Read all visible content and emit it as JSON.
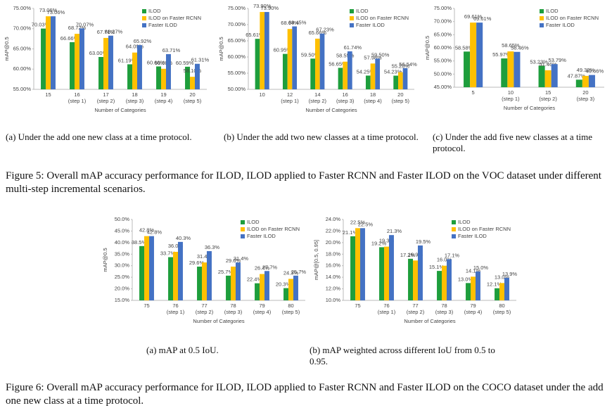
{
  "chart_data": [
    {
      "type": "bar",
      "y_label": "mAP@0.5",
      "x_label": "Number of Categories",
      "legend": "upper right",
      "categories": [
        [
          "15"
        ],
        [
          "16",
          "(step 1)"
        ],
        [
          "17",
          "(step 2)"
        ],
        [
          "18",
          "(step 3)"
        ],
        [
          "19",
          "(step 4)"
        ],
        [
          "20",
          "(step 5)"
        ]
      ],
      "ylim": [
        55,
        75
      ],
      "yticks": [
        {
          "value": 55,
          "label": "55.00%"
        },
        {
          "value": 60,
          "label": "60.00%"
        },
        {
          "value": 65,
          "label": "65.00%"
        },
        {
          "value": 70,
          "label": "70.00%"
        },
        {
          "value": 75,
          "label": "75.00%"
        }
      ],
      "series": [
        {
          "name": "ILOD",
          "color": "#1e9e3c",
          "values": [
            70.03,
            66.66,
            63.0,
            61.19,
            60.66,
            60.59
          ],
          "value_labels": [
            "70.03%",
            "66.66%",
            "63.00%",
            "61.19%",
            "60.66%",
            "60.59%"
          ]
        },
        {
          "name": "ILOD on Faster RCNN",
          "color": "#ffc000",
          "values": [
            73.06,
            68.72,
            67.71,
            64.09,
            60.08,
            58.1
          ],
          "value_labels": [
            "73.06%",
            "68.72%",
            "67.71%",
            "64.09%",
            "60.08%",
            "58.10%"
          ]
        },
        {
          "name": "Faster ILOD",
          "color": "#4472c4",
          "values": [
            73.06,
            70.07,
            68.27,
            65.92,
            63.71,
            61.31
          ],
          "value_labels": [
            "73.06%",
            "70.07%",
            "68.27%",
            "65.92%",
            "63.71%",
            "61.31%"
          ]
        }
      ],
      "caption": "(a) Under the add one new class at a time protocol."
    },
    {
      "type": "bar",
      "y_label": "mAP@0.5",
      "x_label": "Number of Categories",
      "legend": "upper right",
      "categories": [
        [
          "10"
        ],
        [
          "12",
          "(step 1)"
        ],
        [
          "14",
          "(step 2)"
        ],
        [
          "16",
          "(step 3)"
        ],
        [
          "18",
          "(step 4)"
        ],
        [
          "20",
          "(step 5)"
        ]
      ],
      "ylim": [
        50,
        75
      ],
      "yticks": [
        {
          "value": 50,
          "label": "50.00%"
        },
        {
          "value": 55,
          "label": "55.00%"
        },
        {
          "value": 60,
          "label": "60.00%"
        },
        {
          "value": 65,
          "label": "65.00%"
        },
        {
          "value": 70,
          "label": "70.00%"
        },
        {
          "value": 75,
          "label": "75.00%"
        }
      ],
      "series": [
        {
          "name": "ILOD",
          "color": "#1e9e3c",
          "values": [
            65.61,
            60.95,
            59.5,
            56.65,
            54.25,
            54.23
          ],
          "value_labels": [
            "65.61%",
            "60.95%",
            "59.50%",
            "56.65%",
            "54.25%",
            "54.23%"
          ]
        },
        {
          "name": "ILOD on Faster RCNN",
          "color": "#ffc000",
          "values": [
            73.9,
            68.64,
            65.66,
            58.55,
            57.98,
            55.28
          ],
          "value_labels": [
            "73.90%",
            "68.64%",
            "65.66%",
            "58.55%",
            "57.98%",
            "55.28%"
          ]
        },
        {
          "name": "Faster ILOD",
          "color": "#4472c4",
          "values": [
            73.9,
            69.45,
            67.23,
            61.74,
            59.5,
            56.54
          ],
          "value_labels": [
            "73.90%",
            "69.45%",
            "67.23%",
            "61.74%",
            "59.50%",
            "56.54%"
          ]
        }
      ],
      "caption": "(b) Under the add two new classes at a time protocol."
    },
    {
      "type": "bar",
      "y_label": "mAP@0.5",
      "x_label": "Number of Categories",
      "legend": "upper right",
      "categories": [
        [
          "5"
        ],
        [
          "10",
          "(step 1)"
        ],
        [
          "15",
          "(step 2)"
        ],
        [
          "20",
          "(step 3)"
        ]
      ],
      "ylim": [
        45,
        75
      ],
      "yticks": [
        {
          "value": 45,
          "label": "45.00%"
        },
        {
          "value": 50,
          "label": "50.00%"
        },
        {
          "value": 55,
          "label": "55.00%"
        },
        {
          "value": 60,
          "label": "60.00%"
        },
        {
          "value": 65,
          "label": "65.00%"
        },
        {
          "value": 70,
          "label": "70.00%"
        },
        {
          "value": 75,
          "label": "75.00%"
        }
      ],
      "series": [
        {
          "name": "ILOD",
          "color": "#1e9e3c",
          "values": [
            58.58,
            55.97,
            53.23,
            47.87
          ],
          "value_labels": [
            "58.58%",
            "55.97%",
            "53.23%",
            "47.87%"
          ]
        },
        {
          "name": "ILOD on Faster RCNN",
          "color": "#ffc000",
          "values": [
            69.61,
            58.65,
            51.46,
            49.32
          ],
          "value_labels": [
            "69.61%",
            "58.65%",
            "51.46%",
            "49.32%"
          ]
        },
        {
          "name": "Faster ILOD",
          "color": "#4472c4",
          "values": [
            69.61,
            58.46,
            53.79,
            49.66
          ],
          "value_labels": [
            "69.61%",
            "58.46%",
            "53.79%",
            "49.66%"
          ]
        }
      ],
      "caption": "(c) Under the add five new classes at a time protocol."
    },
    {
      "type": "bar",
      "y_label": "mAP@0.5",
      "x_label": "Number of Categories",
      "legend": "upper right",
      "categories": [
        [
          "75"
        ],
        [
          "76",
          "(step 1)"
        ],
        [
          "77",
          "(step 2)"
        ],
        [
          "78",
          "(step 3)"
        ],
        [
          "79",
          "(step 4)"
        ],
        [
          "80",
          "(step 5)"
        ]
      ],
      "ylim": [
        15,
        50
      ],
      "yticks": [
        {
          "value": 15,
          "label": "15.0%"
        },
        {
          "value": 20,
          "label": "20.0%"
        },
        {
          "value": 25,
          "label": "25.0%"
        },
        {
          "value": 30,
          "label": "30.0%"
        },
        {
          "value": 35,
          "label": "35.0%"
        },
        {
          "value": 40,
          "label": "40.0%"
        },
        {
          "value": 45,
          "label": "45.0%"
        },
        {
          "value": 50,
          "label": "50.0%"
        }
      ],
      "series": [
        {
          "name": "ILOD",
          "color": "#1e9e3c",
          "values": [
            38.5,
            33.7,
            29.6,
            25.7,
            22.4,
            20.3
          ],
          "value_labels": [
            "38.5%",
            "33.7%",
            "29.6%",
            "25.7%",
            "22.4%",
            "20.3%"
          ]
        },
        {
          "name": "ILOD on Faster RCNN",
          "color": "#ffc000",
          "values": [
            42.8,
            36.0,
            31.4,
            29.6,
            26.4,
            24.3
          ],
          "value_labels": [
            "42.8%",
            "36.0%",
            "31.4%",
            "29.6%",
            "26.4%",
            "24.3%"
          ]
        },
        {
          "name": "Faster ILOD",
          "color": "#4472c4",
          "values": [
            42.8,
            40.3,
            36.3,
            31.4,
            27.7,
            25.7
          ],
          "value_labels": [
            "42.8%",
            "40.3%",
            "36.3%",
            "31.4%",
            "27.7%",
            "25.7%"
          ]
        }
      ],
      "caption": "(a) mAP at 0.5 IoU."
    },
    {
      "type": "bar",
      "y_label": "mAP@[0.5, 0.95]",
      "x_label": "Number of Categories",
      "legend": "upper right",
      "categories": [
        [
          "75"
        ],
        [
          "76",
          "(step 1)"
        ],
        [
          "77",
          "(step 2)"
        ],
        [
          "78",
          "(step 3)"
        ],
        [
          "79",
          "(step 4)"
        ],
        [
          "80",
          "(step 5)"
        ]
      ],
      "ylim": [
        10,
        24
      ],
      "yticks": [
        {
          "value": 10,
          "label": "10.0%"
        },
        {
          "value": 12,
          "label": "12.0%"
        },
        {
          "value": 14,
          "label": "14.0%"
        },
        {
          "value": 16,
          "label": "16.0%"
        },
        {
          "value": 18,
          "label": "18.0%"
        },
        {
          "value": 20,
          "label": "20.0%"
        },
        {
          "value": 22,
          "label": "22.0%"
        },
        {
          "value": 24,
          "label": "24.0%"
        }
      ],
      "series": [
        {
          "name": "ILOD",
          "color": "#1e9e3c",
          "values": [
            21.1,
            19.2,
            17.2,
            15.1,
            13.0,
            12.1
          ],
          "value_labels": [
            "21.1%",
            "19.2%",
            "17.2%",
            "15.1%",
            "13.0%",
            "12.1%"
          ]
        },
        {
          "name": "ILOD on Faster RCNN",
          "color": "#ffc000",
          "values": [
            22.5,
            19.3,
            16.9,
            16.0,
            14.1,
            13.0
          ],
          "value_labels": [
            "22.5%",
            "19.3%",
            "16.9%",
            "16.0%",
            "14.1%",
            "13.0%"
          ]
        },
        {
          "name": "Faster ILOD",
          "color": "#4472c4",
          "values": [
            22.5,
            21.3,
            19.5,
            17.1,
            15.0,
            13.9
          ],
          "value_labels": [
            "22.5%",
            "21.3%",
            "19.5%",
            "17.1%",
            "15.0%",
            "13.9%"
          ]
        }
      ],
      "caption": "(b) mAP weighted across different IoU from 0.5 to 0.95."
    }
  ],
  "figure5_caption": "Figure 5: Overall mAP accuracy performance for ILOD, ILOD applied to Faster RCNN and Faster ILOD on the VOC dataset under different multi-step incremental scenarios.",
  "figure6_caption": "Figure 6: Overall mAP accuracy performance for ILOD, ILOD applied to Faster RCNN and Faster ILOD on the COCO dataset under the add one new class at a time protocol."
}
